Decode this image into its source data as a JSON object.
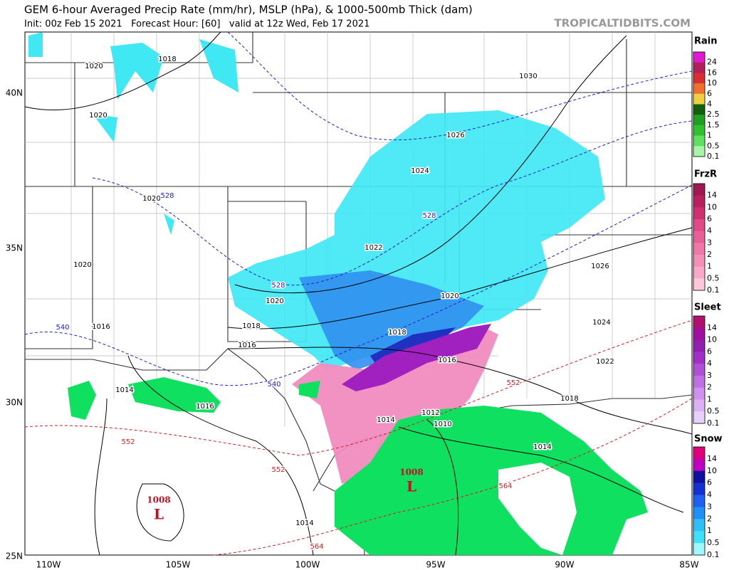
{
  "header": {
    "title": "GEM 6-hour Averaged Precip Rate (mm/hr), MSLP (hPa), & 1000-500mb Thick (dam)",
    "subtitle": "Init: 00z Feb 15 2021   Forecast Hour: [60]   valid at 12z Wed, Feb 17 2021",
    "site": "TROPICALTIDBITS.COM"
  },
  "map": {
    "lat_labels": [
      "40N",
      "35N",
      "30N",
      "25N"
    ],
    "lon_labels": [
      "110W",
      "105W",
      "100W",
      "95W",
      "90W",
      "85W"
    ],
    "isobar_labels": [
      "1018",
      "1020",
      "1020",
      "1020",
      "1020",
      "1016",
      "1018",
      "1016",
      "1020",
      "1022",
      "1024",
      "1026",
      "1030",
      "1020",
      "1018",
      "1016",
      "1014",
      "1012",
      "1010",
      "1014",
      "1026",
      "1024",
      "1022",
      "1018",
      "1014",
      "1016",
      "1014"
    ],
    "thickness_labels_blue": [
      "528",
      "528",
      "528",
      "540",
      "540"
    ],
    "thickness_labels_red": [
      "552",
      "552",
      "552",
      "564",
      "564"
    ],
    "lows": [
      {
        "pressure": "1008",
        "symbol": "L"
      },
      {
        "pressure": "1008",
        "symbol": "L"
      }
    ]
  },
  "legend": [
    {
      "title": "Rain",
      "labels": [
        "24",
        "16",
        "10",
        "6",
        "4",
        "2.5",
        "1.5",
        "1",
        "0.5",
        "0.1"
      ],
      "colors": [
        "#e01ad0",
        "#b0205a",
        "#d83030",
        "#f07030",
        "#f0d040",
        "#106010",
        "#20a020",
        "#30c030",
        "#60e060",
        "#a8f4a8"
      ]
    },
    {
      "title": "FrzR",
      "labels": [
        "14",
        "10",
        "6",
        "4",
        "3",
        "2",
        "1",
        "0.5",
        "0.1"
      ],
      "colors": [
        "#a01850",
        "#b82060",
        "#d03070",
        "#e04a88",
        "#e8609a",
        "#f078a8",
        "#f490b8",
        "#f8a8c8",
        "#fcc8dc"
      ]
    },
    {
      "title": "Sleet",
      "labels": [
        "14",
        "10",
        "6",
        "4",
        "3",
        "2",
        "1",
        "0.5",
        "0.1"
      ],
      "colors": [
        "#b01070",
        "#a010a0",
        "#9020b0",
        "#a030c8",
        "#b050d8",
        "#c070e0",
        "#d090f0",
        "#dcb0f4",
        "#e8d0fa"
      ]
    },
    {
      "title": "Snow",
      "labels": [
        "14",
        "10",
        "6",
        "4",
        "3",
        "2",
        "1",
        "0.5",
        "0.1"
      ],
      "colors": [
        "#e0007a",
        "#c000c0",
        "#1010a0",
        "#1530d0",
        "#2060f0",
        "#2090f8",
        "#30c0f8",
        "#40e0f8",
        "#a0f8fc"
      ]
    }
  ]
}
